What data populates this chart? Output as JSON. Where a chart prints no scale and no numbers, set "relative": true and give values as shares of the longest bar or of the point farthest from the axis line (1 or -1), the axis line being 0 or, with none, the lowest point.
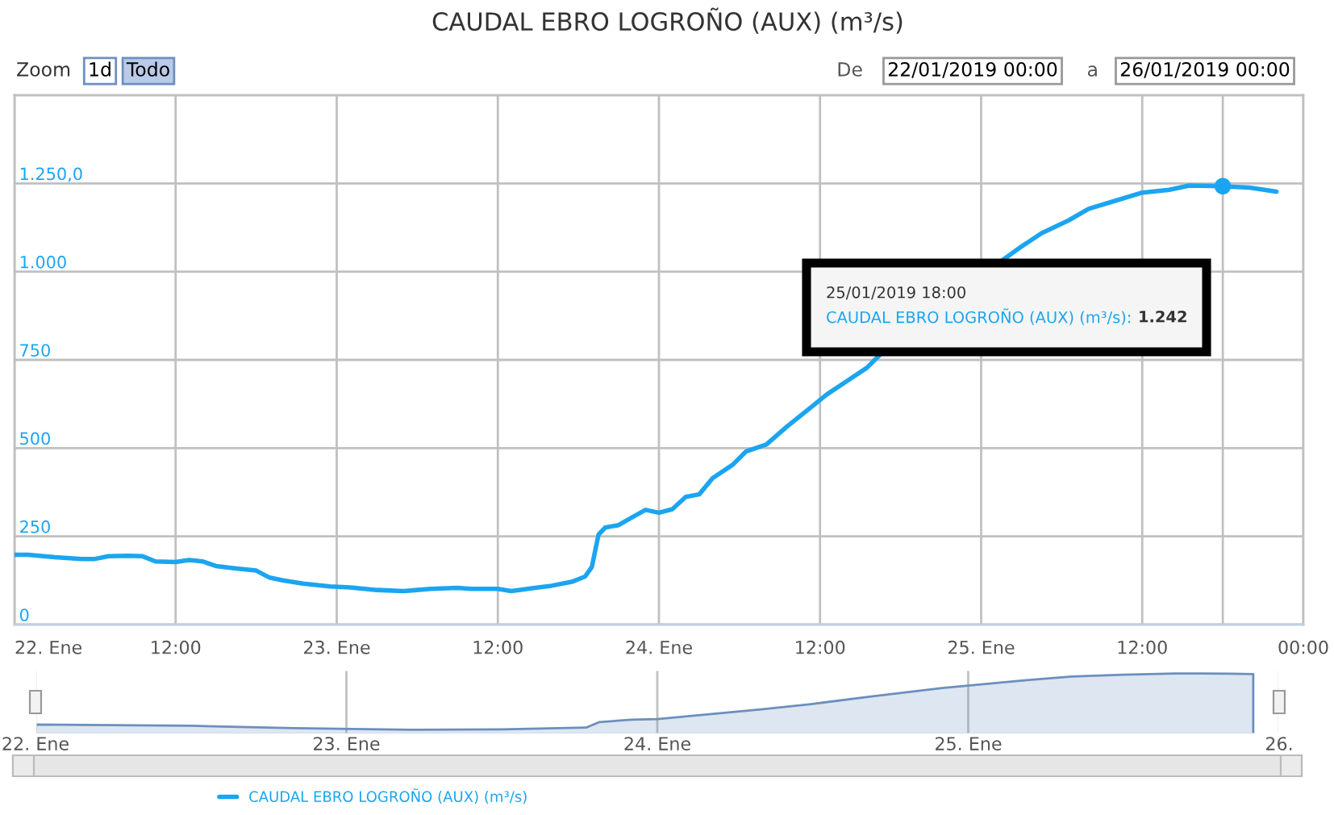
{
  "chart_data": [
    {
      "type": "line",
      "title": "CAUDAL EBRO LOGROÑO (AUX) (m³/s)",
      "annotations": [
        "Zoom",
        "1d",
        "Todo",
        "De",
        "22/01/2019 00:00",
        "a",
        "26/01/2019 00:00",
        "25/01/2019 18:00",
        "CAUDAL EBRO LOGROÑO (AUX) (m³/s):",
        "1.242"
      ],
      "series": [
        {
          "name": "CAUDAL EBRO LOGROÑO (AUX) (m³/s)",
          "color": "#1ba5f0",
          "x": [
            "2019-01-22T00:00",
            "2019-01-22T01:00",
            "2019-01-22T03:00",
            "2019-01-22T05:00",
            "2019-01-22T06:00",
            "2019-01-22T07:00",
            "2019-01-22T08:30",
            "2019-01-22T09:30",
            "2019-01-22T10:30",
            "2019-01-22T12:00",
            "2019-01-22T13:00",
            "2019-01-22T14:00",
            "2019-01-22T15:00",
            "2019-01-22T16:30",
            "2019-01-22T18:00",
            "2019-01-22T19:00",
            "2019-01-22T20:00",
            "2019-01-22T21:30",
            "2019-01-22T23:30",
            "2019-01-23T01:00",
            "2019-01-23T03:00",
            "2019-01-23T05:00",
            "2019-01-23T07:00",
            "2019-01-23T09:00",
            "2019-01-23T10:00",
            "2019-01-23T12:00",
            "2019-01-23T13:00",
            "2019-01-23T15:00",
            "2019-01-23T16:00",
            "2019-01-23T17:30",
            "2019-01-23T18:30",
            "2019-01-23T19:00",
            "2019-01-23T19:30",
            "2019-01-23T20:00",
            "2019-01-23T21:00",
            "2019-01-23T22:00",
            "2019-01-23T23:00",
            "2019-01-24T00:00",
            "2019-01-24T01:00",
            "2019-01-24T02:00",
            "2019-01-24T03:00",
            "2019-01-24T04:00",
            "2019-01-24T05:30",
            "2019-01-24T06:30",
            "2019-01-24T08:00",
            "2019-01-24T09:30",
            "2019-01-24T11:30",
            "2019-01-24T12:30",
            "2019-01-24T14:00",
            "2019-01-24T15:30",
            "2019-01-24T16:30",
            "2019-01-24T21:00",
            "2019-01-25T01:30",
            "2019-01-25T03:00",
            "2019-01-25T04:30",
            "2019-01-25T06:30",
            "2019-01-25T08:00",
            "2019-01-25T10:00",
            "2019-01-25T12:00",
            "2019-01-25T14:00",
            "2019-01-25T15:30",
            "2019-01-25T18:00",
            "2019-01-25T20:00",
            "2019-01-25T22:00"
          ],
          "values": [
            198,
            198,
            191,
            186,
            186,
            194,
            195,
            194,
            179,
            177,
            183,
            179,
            166,
            159,
            153,
            133,
            125,
            116,
            108,
            105,
            98,
            95,
            101,
            104,
            101,
            101,
            95,
            105,
            110,
            121,
            136,
            163,
            255,
            275,
            282,
            304,
            325,
            317,
            327,
            362,
            369,
            415,
            453,
            491,
            510,
            560,
            621,
            652,
            690,
            728,
            766,
            null,
            1030,
            1071,
            1109,
            1145,
            1178,
            1201,
            1224,
            1232,
            1244,
            1242,
            1238,
            1227
          ]
        },
        {
          "type": "scatter",
          "color": "#1ba5f0",
          "x": [
            "2019-01-25T18:00"
          ],
          "values": [
            1242
          ]
        }
      ],
      "xlim": [
        "2019-01-22T00:00",
        "2019-01-26T00:00"
      ],
      "xticks": [
        {
          "value": "2019-01-22T00:00",
          "label": "22. Ene"
        },
        {
          "value": "2019-01-22T12:00",
          "label": "12:00"
        },
        {
          "value": "2019-01-23T00:00",
          "label": "23. Ene"
        },
        {
          "value": "2019-01-23T12:00",
          "label": "12:00"
        },
        {
          "value": "2019-01-24T00:00",
          "label": "24. Ene"
        },
        {
          "value": "2019-01-24T12:00",
          "label": "12:00"
        },
        {
          "value": "2019-01-25T00:00",
          "label": "25. Ene"
        },
        {
          "value": "2019-01-25T12:00",
          "label": "12:00"
        },
        {
          "value": "2019-01-26T00:00",
          "label": "00:00"
        }
      ],
      "ylim": [
        0,
        1500
      ],
      "yticks": [
        0,
        250,
        500,
        750,
        {
          "value": 1000,
          "label": "1.000"
        },
        {
          "value": 1250,
          "label": "1.250,0"
        }
      ],
      "ref_lines": [
        {
          "axis": "x",
          "value": "2019-01-25T18:00",
          "color": "#c0c0c0"
        }
      ],
      "grid": true,
      "legend": "bottom"
    },
    {
      "type": "area",
      "relative": true,
      "color": "#6b8fbf",
      "x": [
        "2019-01-22T00:00",
        "2019-01-22T12:00",
        "2019-01-22T20:00",
        "2019-01-23T05:00",
        "2019-01-23T12:00",
        "2019-01-23T18:30",
        "2019-01-23T19:30",
        "2019-01-23T22:00",
        "2019-01-24T00:00",
        "2019-01-24T04:00",
        "2019-01-24T08:00",
        "2019-01-24T12:00",
        "2019-01-24T16:30",
        "2019-01-24T22:00",
        "2019-01-25T04:00",
        "2019-01-25T08:00",
        "2019-01-25T12:00",
        "2019-01-25T16:00",
        "2019-01-25T18:00",
        "2019-01-25T22:00"
      ],
      "values": [
        0.16,
        0.14,
        0.1,
        0.076,
        0.081,
        0.11,
        0.2,
        0.24,
        0.25,
        0.33,
        0.41,
        0.5,
        0.62,
        0.76,
        0.88,
        0.95,
        0.98,
        1,
        1,
        0.99
      ],
      "xlim": [
        "2019-01-22T00:00",
        "2019-01-26T00:00"
      ],
      "xticks": [
        {
          "value": "2019-01-22T00:00",
          "label": "22. Ene"
        },
        {
          "value": "2019-01-23T00:00",
          "label": "23. Ene"
        },
        {
          "value": "2019-01-24T00:00",
          "label": "24. Ene"
        },
        {
          "value": "2019-01-25T00:00",
          "label": "25. Ene"
        },
        {
          "value": "2019-01-26T00:00",
          "label": "26."
        }
      ],
      "grid": "x"
    }
  ]
}
